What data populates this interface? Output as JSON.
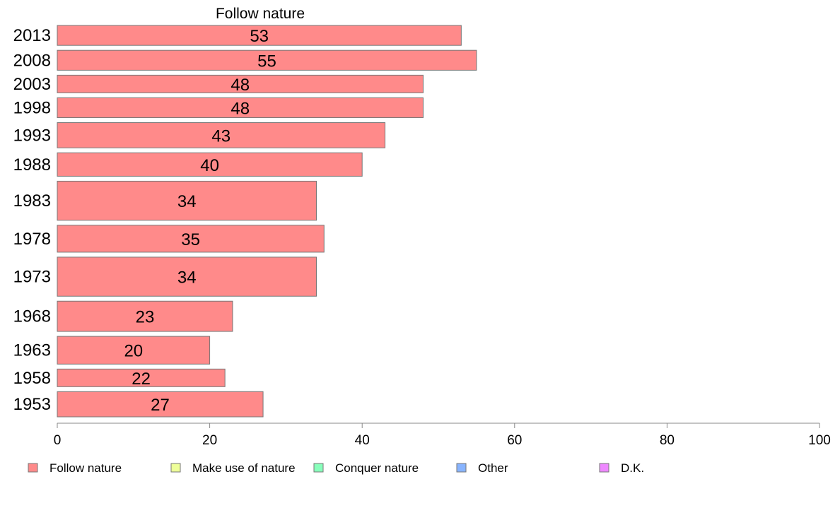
{
  "chart_data": {
    "type": "bar",
    "orientation": "horizontal",
    "title": "Follow nature",
    "categories": [
      "2013",
      "2008",
      "2003",
      "1998",
      "1993",
      "1988",
      "1983",
      "1978",
      "1973",
      "1968",
      "1963",
      "1958",
      "1953"
    ],
    "series": [
      {
        "name": "Follow nature",
        "values": [
          53,
          55,
          48,
          48,
          43,
          40,
          34,
          35,
          34,
          23,
          20,
          22,
          27
        ],
        "color": "#ff8a8a"
      }
    ],
    "bar_widths_relative": [
      0.79,
      0.79,
      0.7,
      0.79,
      1.0,
      0.93,
      1.55,
      1.07,
      1.55,
      1.2,
      1.1,
      0.7,
      1.0
    ],
    "data_labels": [
      "53",
      "55",
      "48",
      "48",
      "43",
      "40",
      "34",
      "35",
      "34",
      "23",
      "20",
      "22",
      "27"
    ],
    "xlim": [
      0,
      100
    ],
    "xticks": [
      "0",
      "20",
      "40",
      "60",
      "80",
      "100"
    ],
    "xlabel": "",
    "ylabel": "",
    "grid": false,
    "legend_position": "bottom",
    "legend": [
      {
        "label": "Follow nature",
        "color": "#ff8a8a"
      },
      {
        "label": "Make use of nature",
        "color": "#eeff99"
      },
      {
        "label": "Conquer nature",
        "color": "#88ffbb"
      },
      {
        "label": "Other",
        "color": "#88b4ff"
      },
      {
        "label": "D.K.",
        "color": "#ee88ff"
      }
    ]
  }
}
